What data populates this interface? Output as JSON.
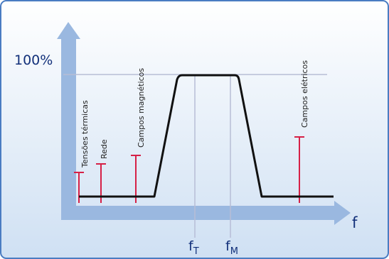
{
  "y_label": "100%",
  "x_label": "f",
  "markers": [
    {
      "main": "f",
      "sub": "T"
    },
    {
      "main": "f",
      "sub": "M"
    }
  ],
  "interference_labels": [
    "Tensões térmicas",
    "Rede",
    "Campos magnéticos",
    "Campos elétricos"
  ],
  "colors": {
    "frame": "#4a7cc2",
    "background_top": "#ffffff",
    "background_bottom": "#cfe0f3",
    "axis": "#9ab8e0",
    "curve": "#111111",
    "interference": "#d62046",
    "guide": "#b7bdd6",
    "text_blue": "#12307a"
  }
}
